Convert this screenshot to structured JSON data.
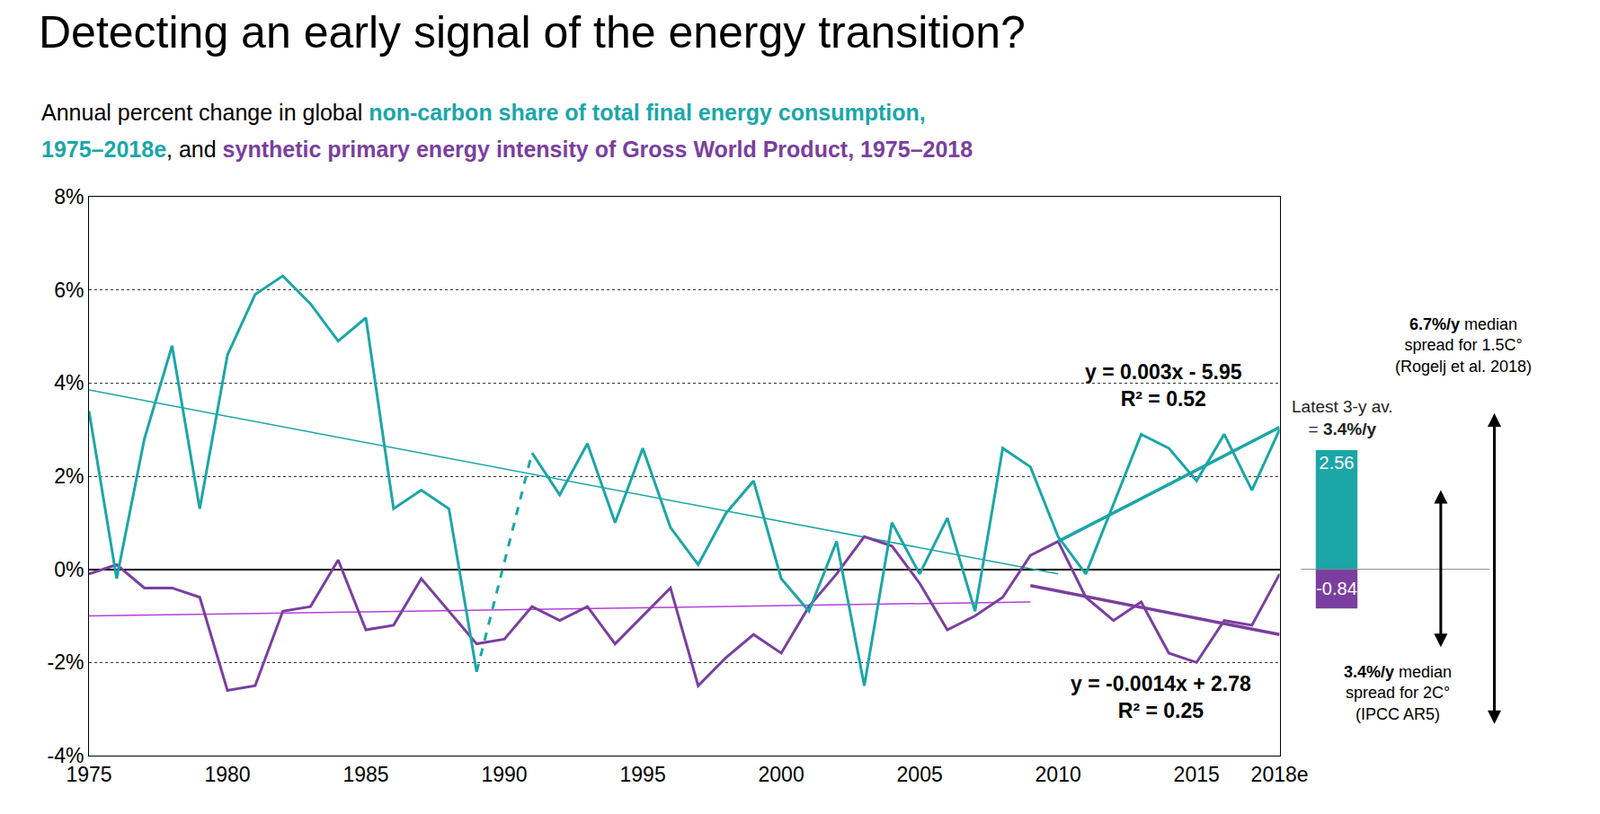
{
  "chart_data": {
    "type": "line",
    "title": "Detecting an early signal of the energy transition?",
    "subtitle": [
      [
        {
          "text": "Annual percent change in global "
        },
        {
          "text": "non-carbon share of total final energy consumption,",
          "color": "#1ba6a8"
        }
      ],
      [
        {
          "text": "1975–2018e",
          "color": "#1ba6a8"
        },
        {
          "text": ", and "
        },
        {
          "text": "synthetic primary energy intensity of Gross World Product, 1975–2018",
          "color": "#7a3f9e"
        }
      ]
    ],
    "x": [
      1975,
      1976,
      1977,
      1978,
      1979,
      1980,
      1981,
      1982,
      1983,
      1984,
      1985,
      1986,
      1987,
      1988,
      1989,
      1990,
      1991,
      1992,
      1993,
      1994,
      1995,
      1996,
      1997,
      1998,
      1999,
      2000,
      2001,
      2002,
      2003,
      2004,
      2005,
      2006,
      2007,
      2008,
      2009,
      2010,
      2011,
      2012,
      2013,
      2014,
      2015,
      2016,
      2017,
      2018
    ],
    "xlim": [
      1975,
      2018
    ],
    "xticks": [
      1975,
      1980,
      1985,
      1990,
      1995,
      2000,
      2005,
      2010,
      2015,
      {
        "value": 2018,
        "label": "2018e"
      }
    ],
    "ylim": [
      -4,
      8
    ],
    "yticks": [
      {
        "value": -4,
        "label": "-4%"
      },
      {
        "value": -2,
        "label": "-2%"
      },
      {
        "value": 0,
        "label": "0%"
      },
      {
        "value": 2,
        "label": "2%"
      },
      {
        "value": 4,
        "label": "4%"
      },
      {
        "value": 6,
        "label": "6%"
      },
      {
        "value": 8,
        "label": "8%"
      }
    ],
    "grid": true,
    "series": [
      {
        "color": "#1ba6a8",
        "line_style": "thin",
        "x": [
          1975,
          2010
        ],
        "values": [
          3.85,
          -0.1
        ]
      },
      {
        "color": "#b440d8",
        "line_style": "thin",
        "x": [
          1975,
          2009
        ],
        "values": [
          -1.0,
          -0.7
        ]
      },
      {
        "color": "#7a3f9e",
        "line_style": "solid",
        "values": [
          -0.1,
          0.1,
          -0.4,
          -0.4,
          -0.6,
          -2.6,
          -2.5,
          -0.9,
          -0.8,
          0.2,
          -1.3,
          -1.2,
          -0.2,
          -0.9,
          -1.6,
          -1.5,
          -0.8,
          -1.1,
          -0.8,
          -1.6,
          -1.0,
          -0.4,
          -2.5,
          -1.9,
          -1.4,
          -1.8,
          -0.8,
          -0.1,
          0.7,
          0.5,
          -0.3,
          -1.3,
          -1.0,
          -0.6,
          0.3,
          0.6,
          -0.6,
          -1.1,
          -0.7,
          -1.8,
          -2.0,
          -1.1,
          -1.2,
          -0.1
        ]
      },
      {
        "color": "#1ba6a8",
        "line_style": "solid",
        "values": [
          3.4,
          -0.2,
          2.8,
          4.8,
          1.3,
          4.6,
          5.9,
          6.3,
          5.7,
          4.9,
          5.4,
          1.3,
          1.7,
          1.3,
          -2.2,
          null,
          2.5,
          1.6,
          2.7,
          1.0,
          2.6,
          0.9,
          0.1,
          1.2,
          1.9,
          -0.2,
          -0.9,
          0.6,
          -2.5,
          1.0,
          -0.1,
          1.1,
          -0.9,
          2.6,
          2.2,
          0.7,
          -0.1,
          1.4,
          2.9,
          2.6,
          1.9,
          2.9,
          1.7,
          3.0
        ]
      },
      {
        "color": "#1ba6a8",
        "line_style": "dashed",
        "x": [
          1989,
          1991
        ],
        "values": [
          -2.2,
          2.5
        ]
      },
      {
        "color": "#1ba6a8",
        "line_style": "thick",
        "x": [
          2010,
          2018
        ],
        "values": [
          0.6,
          3.05
        ],
        "equation": [
          "y = 0.003x - 5.95",
          "R² = 0.52"
        ]
      },
      {
        "color": "#7a3f9e",
        "line_style": "thick",
        "x": [
          2009,
          2018
        ],
        "values": [
          -0.35,
          -1.4
        ],
        "equation": [
          "y = -0.0014x + 2.78",
          "R² = 0.25"
        ]
      }
    ],
    "side_panel": {
      "type": "bar",
      "stacked": true,
      "data_labels": true,
      "title": [
        "Latest 3-y av.",
        "= 3.4%/y"
      ],
      "values": [
        2.56,
        -0.84
      ],
      "colors": [
        "#1ba6a8",
        "#7a3f9e"
      ]
    },
    "spreads": [
      {
        "value": 6.7,
        "label": [
          "6.7%/y median",
          "spread for 1.5C°",
          "(Rogelj et al. 2018)"
        ]
      },
      {
        "value": 3.4,
        "label": [
          "3.4%/y median",
          "spread for 2C°",
          "(IPCC AR5)"
        ]
      }
    ]
  }
}
